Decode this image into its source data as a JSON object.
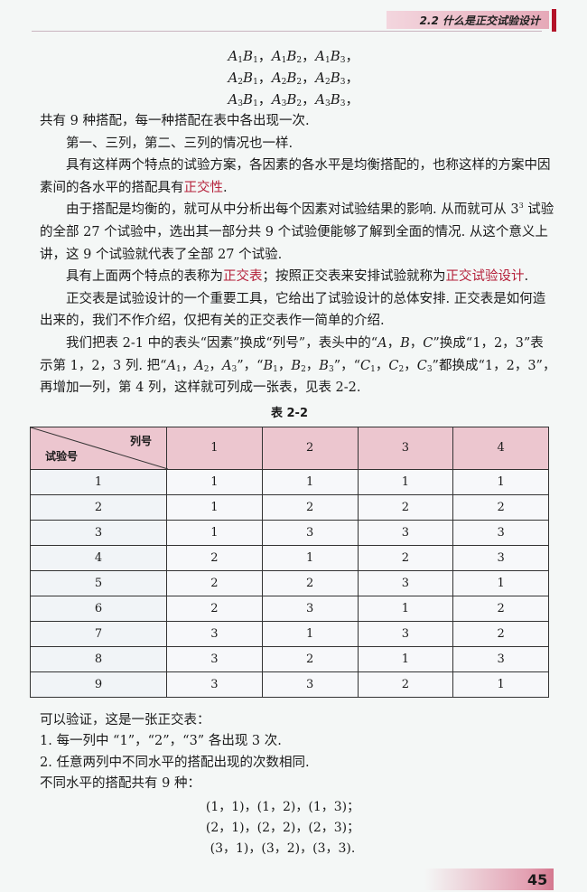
{
  "header": {
    "section_title": "2.2  什么是正交试验设计"
  },
  "combinations": [
    [
      {
        "a": "1",
        "b": "1"
      },
      {
        "a": "1",
        "b": "2"
      },
      {
        "a": "1",
        "b": "3"
      }
    ],
    [
      {
        "a": "2",
        "b": "1"
      },
      {
        "a": "2",
        "b": "2"
      },
      {
        "a": "2",
        "b": "3"
      }
    ],
    [
      {
        "a": "3",
        "b": "1"
      },
      {
        "a": "3",
        "b": "2"
      },
      {
        "a": "3",
        "b": "3"
      }
    ]
  ],
  "paragraphs": [
    {
      "indent": false,
      "segs": [
        {
          "t": "共有 9 种搭配，每一种搭配在表中各出现一次."
        }
      ]
    },
    {
      "indent": true,
      "segs": [
        {
          "t": "第一、三列，第二、三列的情况也一样."
        }
      ]
    },
    {
      "indent": true,
      "segs": [
        {
          "t": "具有这样两个特点的试验方案，各因素的各水平是均衡搭配的，也称这样的方案中因素间的各水平的搭配具有"
        },
        {
          "t": "正交性",
          "red": true
        },
        {
          "t": "."
        }
      ]
    },
    {
      "indent": true,
      "segs": [
        {
          "t": "由于搭配是均衡的，就可从中分析出每个因素对试验结果的影响. 从而就可从 3"
        },
        {
          "sup": "3"
        },
        {
          "t": " 试验的全部 27 个试验中，选出其一部分共 9 个试验便能够了解到全面的情况. 从这个意义上讲，这 9 个试验就代表了全部 27 个试验."
        }
      ]
    },
    {
      "indent": true,
      "segs": [
        {
          "t": "具有上面两个特点的表称为"
        },
        {
          "t": "正交表",
          "red": true
        },
        {
          "t": "；按照正交表来安排试验就称为"
        },
        {
          "t": "正交试验设计",
          "red": true
        },
        {
          "t": "."
        }
      ]
    },
    {
      "indent": true,
      "segs": [
        {
          "t": "正交表是试验设计的一个重要工具，它给出了试验设计的总体安排. 正交表是如何造出来的，我们不作介绍，仅把有关的正交表作一简单的介绍."
        }
      ]
    },
    {
      "indent": true,
      "segs": [
        {
          "t": "我们把表 2-1 中的表头“因素”换成“列号”，表头中的“"
        },
        {
          "i": "A"
        },
        {
          "t": "，"
        },
        {
          "i": "B"
        },
        {
          "t": "，"
        },
        {
          "i": "C"
        },
        {
          "t": "”换成“1，2，3”表示第 1，2，3 列. 把“"
        },
        {
          "i": "A"
        },
        {
          "sub": "1"
        },
        {
          "t": "，"
        },
        {
          "i": "A"
        },
        {
          "sub": "2"
        },
        {
          "t": "，"
        },
        {
          "i": "A"
        },
        {
          "sub": "3"
        },
        {
          "t": "”，“"
        },
        {
          "i": "B"
        },
        {
          "sub": "1"
        },
        {
          "t": "，"
        },
        {
          "i": "B"
        },
        {
          "sub": "2"
        },
        {
          "t": "，"
        },
        {
          "i": "B"
        },
        {
          "sub": "3"
        },
        {
          "t": "”，“"
        },
        {
          "i": "C"
        },
        {
          "sub": "1"
        },
        {
          "t": "，"
        },
        {
          "i": "C"
        },
        {
          "sub": "2"
        },
        {
          "t": "，"
        },
        {
          "i": "C"
        },
        {
          "sub": "3"
        },
        {
          "t": "”都换成“1，2，3”，再增加一列，第 4 列，这样就可列成一张表，见表 2-2."
        }
      ]
    }
  ],
  "table": {
    "caption": "表 2-2",
    "corner_top": "列号",
    "corner_bottom": "试验号",
    "columns": [
      "1",
      "2",
      "3",
      "4"
    ],
    "rows": [
      {
        "id": "1",
        "v": [
          "1",
          "1",
          "1",
          "1"
        ]
      },
      {
        "id": "2",
        "v": [
          "1",
          "2",
          "2",
          "2"
        ]
      },
      {
        "id": "3",
        "v": [
          "1",
          "3",
          "3",
          "3"
        ]
      },
      {
        "id": "4",
        "v": [
          "2",
          "1",
          "2",
          "3"
        ]
      },
      {
        "id": "5",
        "v": [
          "2",
          "2",
          "3",
          "1"
        ]
      },
      {
        "id": "6",
        "v": [
          "2",
          "3",
          "1",
          "2"
        ]
      },
      {
        "id": "7",
        "v": [
          "3",
          "1",
          "3",
          "2"
        ]
      },
      {
        "id": "8",
        "v": [
          "3",
          "2",
          "1",
          "3"
        ]
      },
      {
        "id": "9",
        "v": [
          "3",
          "3",
          "2",
          "1"
        ]
      }
    ]
  },
  "after": [
    "可以验证，这是一张正交表：",
    "1. 每一列中 “1”，“2”，“3” 各出现 3 次.",
    "2. 任意两列中不同水平的搭配出现的次数相同.",
    "不同水平的搭配共有 9 种："
  ],
  "pairs": [
    "(1，1)，(1，2)，(1，3)；",
    "(2，1)，(2，2)，(2，3)；",
    "(3，1)，(3，2)，(3，3)."
  ],
  "page_number": "45",
  "colors": {
    "accent_red": "#b5203a",
    "header_pink": "#e6a9b8",
    "table_header": "#ecc6cf"
  }
}
